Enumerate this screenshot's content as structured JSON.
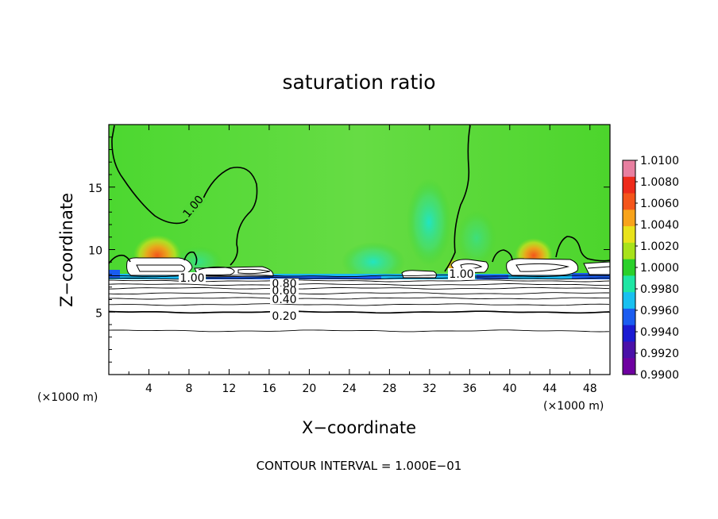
{
  "chart_data": {
    "type": "heatmap",
    "title": "saturation ratio",
    "xlabel": "X−coordinate",
    "ylabel": "Z−coordinate",
    "x_unit": "(×1000 m)",
    "x_unit_right": "(×1000 m)",
    "xlim": [
      0,
      50
    ],
    "ylim": [
      0,
      20
    ],
    "x_ticks": [
      "4",
      "8",
      "12",
      "16",
      "20",
      "24",
      "28",
      "32",
      "36",
      "40",
      "44",
      "48"
    ],
    "y_ticks": [
      "5",
      "10",
      "15"
    ],
    "colorbar": {
      "min": 0.99,
      "max": 1.01,
      "labels": [
        "1.0100",
        "1.0080",
        "1.0060",
        "1.0040",
        "1.0020",
        "1.0000",
        "0.9980",
        "0.9960",
        "0.9940",
        "0.9920",
        "0.9900"
      ],
      "colors": [
        "#e87fa0",
        "#ee2a1a",
        "#f4551a",
        "#f8a31a",
        "#e9e21a",
        "#a8e21a",
        "#2ad02a",
        "#1ee6a4",
        "#18c0f0",
        "#1a5cf0",
        "#1a1ad2",
        "#4a10a8",
        "#6e00a0"
      ]
    },
    "contour_labels": [
      "1.00",
      "1.00",
      "1.00",
      "0.80",
      "0.60",
      "0.40",
      "0.20"
    ],
    "contour_levels": [
      0.1,
      0.2,
      0.3,
      0.4,
      0.5,
      0.6,
      0.7,
      0.8,
      0.9,
      1.0
    ],
    "contour_heights_km": [
      3.5,
      5.0,
      5.6,
      6.1,
      6.5,
      6.9,
      7.2,
      7.5,
      7.7,
      7.9
    ],
    "footer": "CONTOUR INTERVAL = 1.000E−01"
  }
}
